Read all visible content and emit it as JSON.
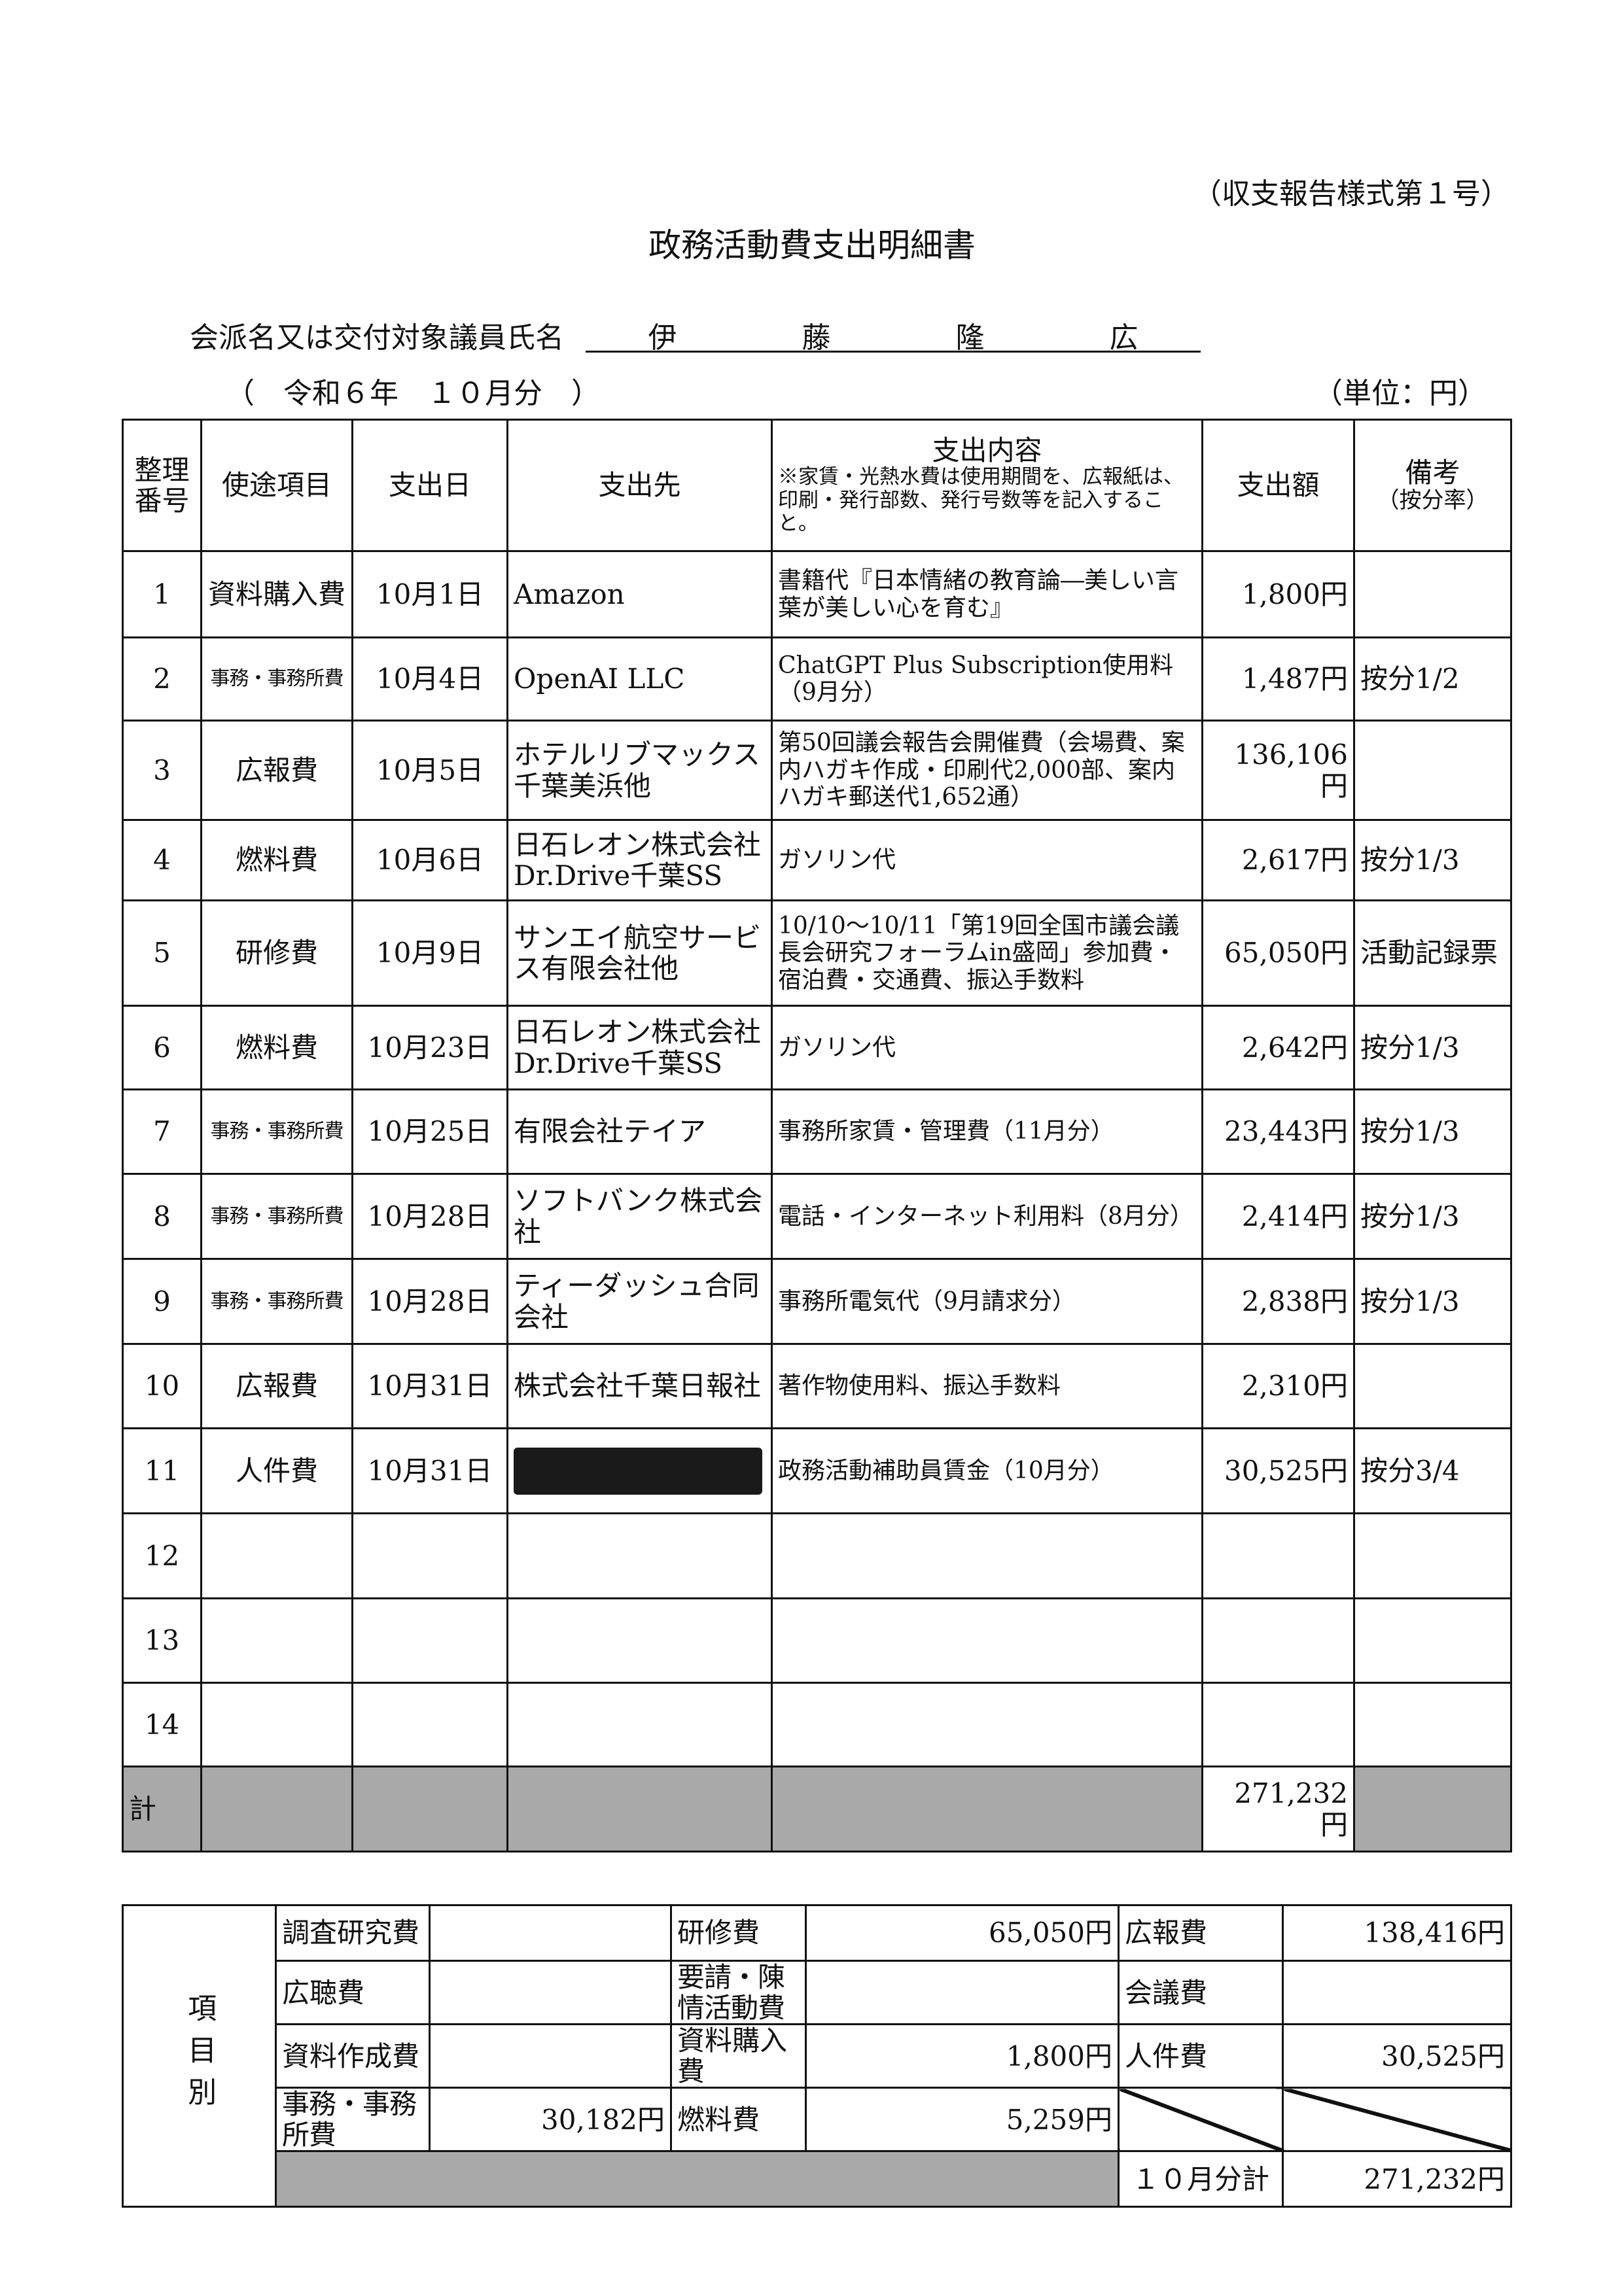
{
  "form_no": "（収支報告様式第１号）",
  "title": "政務活動費支出明細書",
  "name_label": "会派名又は交付対象議員氏名",
  "name_chars": [
    "伊",
    "藤",
    "隆",
    "広"
  ],
  "period": "（　令和６年　１０月分　）",
  "unit": "（単位：円）",
  "headers": {
    "no": "整理番号",
    "category": "使途項目",
    "date": "支出日",
    "payee": "支出先",
    "content": "支出内容",
    "content_note": "※家賃・光熱水費は使用期間を、広報紙は、印刷・発行部数、発行号数等を記入すること。",
    "amount": "支出額",
    "remarks": "備考",
    "remarks_sub": "（按分率）"
  },
  "rows": [
    {
      "no": "1",
      "category": "資料購入費",
      "date": "10月1日",
      "payee": "Amazon",
      "content": "書籍代『日本情緒の教育論―美しい言葉が美しい心を育む』",
      "amount": "1,800円",
      "remarks": ""
    },
    {
      "no": "2",
      "category": "事務・事務所費",
      "date": "10月4日",
      "payee": "OpenAI LLC",
      "content": "ChatGPT Plus Subscription使用料（9月分）",
      "amount": "1,487円",
      "remarks": "按分1/2"
    },
    {
      "no": "3",
      "category": "広報費",
      "date": "10月5日",
      "payee": "ホテルリブマックス千葉美浜他",
      "content": "第50回議会報告会開催費（会場費、案内ハガキ作成・印刷代2,000部、案内ハガキ郵送代1,652通）",
      "amount": "136,106円",
      "remarks": ""
    },
    {
      "no": "4",
      "category": "燃料費",
      "date": "10月6日",
      "payee": "日石レオン株式会社Dr.Drive千葉SS",
      "content": "ガソリン代",
      "amount": "2,617円",
      "remarks": "按分1/3"
    },
    {
      "no": "5",
      "category": "研修費",
      "date": "10月9日",
      "payee": "サンエイ航空サービス有限会社他",
      "content": "10/10～10/11「第19回全国市議会議長会研究フォーラムin盛岡」参加費・宿泊費・交通費、振込手数料",
      "amount": "65,050円",
      "remarks": "活動記録票"
    },
    {
      "no": "6",
      "category": "燃料費",
      "date": "10月23日",
      "payee": "日石レオン株式会社Dr.Drive千葉SS",
      "content": "ガソリン代",
      "amount": "2,642円",
      "remarks": "按分1/3"
    },
    {
      "no": "7",
      "category": "事務・事務所費",
      "date": "10月25日",
      "payee": "有限会社テイア",
      "content": "事務所家賃・管理費（11月分）",
      "amount": "23,443円",
      "remarks": "按分1/3"
    },
    {
      "no": "8",
      "category": "事務・事務所費",
      "date": "10月28日",
      "payee": "ソフトバンク株式会社",
      "content": "電話・インターネット利用料（8月分）",
      "amount": "2,414円",
      "remarks": "按分1/3"
    },
    {
      "no": "9",
      "category": "事務・事務所費",
      "date": "10月28日",
      "payee": "ティーダッシュ合同会社",
      "content": "事務所電気代（9月請求分）",
      "amount": "2,838円",
      "remarks": "按分1/3"
    },
    {
      "no": "10",
      "category": "広報費",
      "date": "10月31日",
      "payee": "株式会社千葉日報社",
      "content": "著作物使用料、振込手数料",
      "amount": "2,310円",
      "remarks": ""
    },
    {
      "no": "11",
      "category": "人件費",
      "date": "10月31日",
      "payee": "",
      "redacted": true,
      "content": "政務活動補助員賃金（10月分）",
      "amount": "30,525円",
      "remarks": "按分3/4"
    },
    {
      "no": "12",
      "category": "",
      "date": "",
      "payee": "",
      "content": "",
      "amount": "",
      "remarks": ""
    },
    {
      "no": "13",
      "category": "",
      "date": "",
      "payee": "",
      "content": "",
      "amount": "",
      "remarks": ""
    },
    {
      "no": "14",
      "category": "",
      "date": "",
      "payee": "",
      "content": "",
      "amount": "",
      "remarks": ""
    }
  ],
  "total": {
    "label": "計",
    "amount": "271,232円"
  },
  "summary": {
    "side_label": "項目別",
    "rows": [
      [
        {
          "label": "調査研究費",
          "value": ""
        },
        {
          "label": "研修費",
          "value": "65,050円"
        },
        {
          "label": "広報費",
          "value": "138,416円"
        }
      ],
      [
        {
          "label": "広聴費",
          "value": ""
        },
        {
          "label": "要請・陳情活動費",
          "value": ""
        },
        {
          "label": "会議費",
          "value": ""
        }
      ],
      [
        {
          "label": "資料作成費",
          "value": ""
        },
        {
          "label": "資料購入費",
          "value": "1,800円"
        },
        {
          "label": "人件費",
          "value": "30,525円"
        }
      ],
      [
        {
          "label": "事務・事務所費",
          "value": "30,182円"
        },
        {
          "label": "燃料費",
          "value": "5,259円"
        }
      ]
    ],
    "month_total_label": "１０月分計",
    "month_total": "271,232円"
  }
}
